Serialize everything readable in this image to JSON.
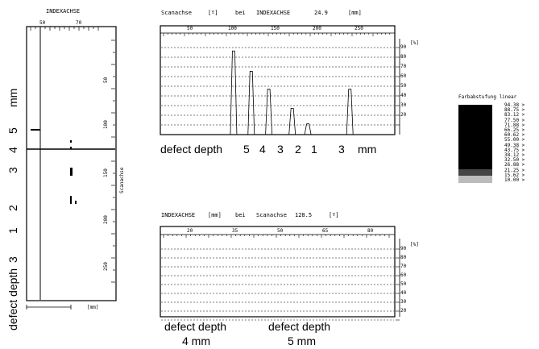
{
  "left_panel": {
    "header": "INDEXACHSE",
    "top_ticks": [
      "50",
      "70"
    ],
    "right_ticks": [
      "50",
      "100",
      "150",
      "200",
      "250"
    ],
    "axis_label": "Scanachse",
    "bottom_unit": "[mm]",
    "side_labels": [
      "mm",
      "5",
      "4",
      "3",
      "2",
      "1",
      "3"
    ],
    "defect_label": "defect depth"
  },
  "top_chart": {
    "header": {
      "t1": "Scanachse",
      "t2": "[º]",
      "t3": "bei",
      "t4": "INDEXACHSE",
      "t5": "24.9",
      "t6": "[mm]"
    },
    "x_ticks": [
      "50",
      "100",
      "150",
      "200",
      "250"
    ],
    "y_ticks": [
      "90",
      "80",
      "70",
      "60",
      "50",
      "40",
      "30",
      "20"
    ],
    "y_unit": "[%]",
    "caption": "defect depth",
    "caption_values": [
      "5",
      "4",
      "3",
      "2",
      "1",
      "3"
    ],
    "caption_unit": "mm"
  },
  "bottom_chart": {
    "header": {
      "t1": "INDEXACHSE",
      "t2": "[mm]",
      "t3": "bei",
      "t4": "Scanachse",
      "t5": "128.5",
      "t6": "[º]"
    },
    "x_ticks": [
      "20",
      "35",
      "50",
      "65",
      "80"
    ],
    "y_ticks": [
      "90",
      "80",
      "70",
      "60",
      "50",
      "40",
      "30",
      "20"
    ],
    "y_unit": "[%]",
    "caption1": {
      "line1": "defect depth",
      "line2": "4 mm"
    },
    "caption2": {
      "line1": "defect depth",
      "line2": "5 mm"
    }
  },
  "legend": {
    "title": "Farbabstufung linear",
    "values": [
      "94.38",
      "88.75",
      "83.12",
      "77.50",
      "71.88",
      "66.25",
      "60.62",
      "55.00",
      "49.38",
      "43.75",
      "38.12",
      "32.50",
      "26.88",
      "21.25",
      "15.62",
      "10.00"
    ],
    "suffix": ">"
  },
  "chart_data": [
    {
      "type": "line",
      "x": [
        100,
        118,
        136,
        160,
        176,
        219
      ],
      "values": [
        80,
        63,
        48,
        32,
        19,
        48
      ],
      "xlim": [
        25,
        265
      ],
      "ylim": [
        10,
        95
      ]
    },
    {
      "type": "line",
      "x": [],
      "values": [],
      "xlim": [
        10,
        95
      ],
      "ylim": [
        10,
        95
      ]
    }
  ]
}
